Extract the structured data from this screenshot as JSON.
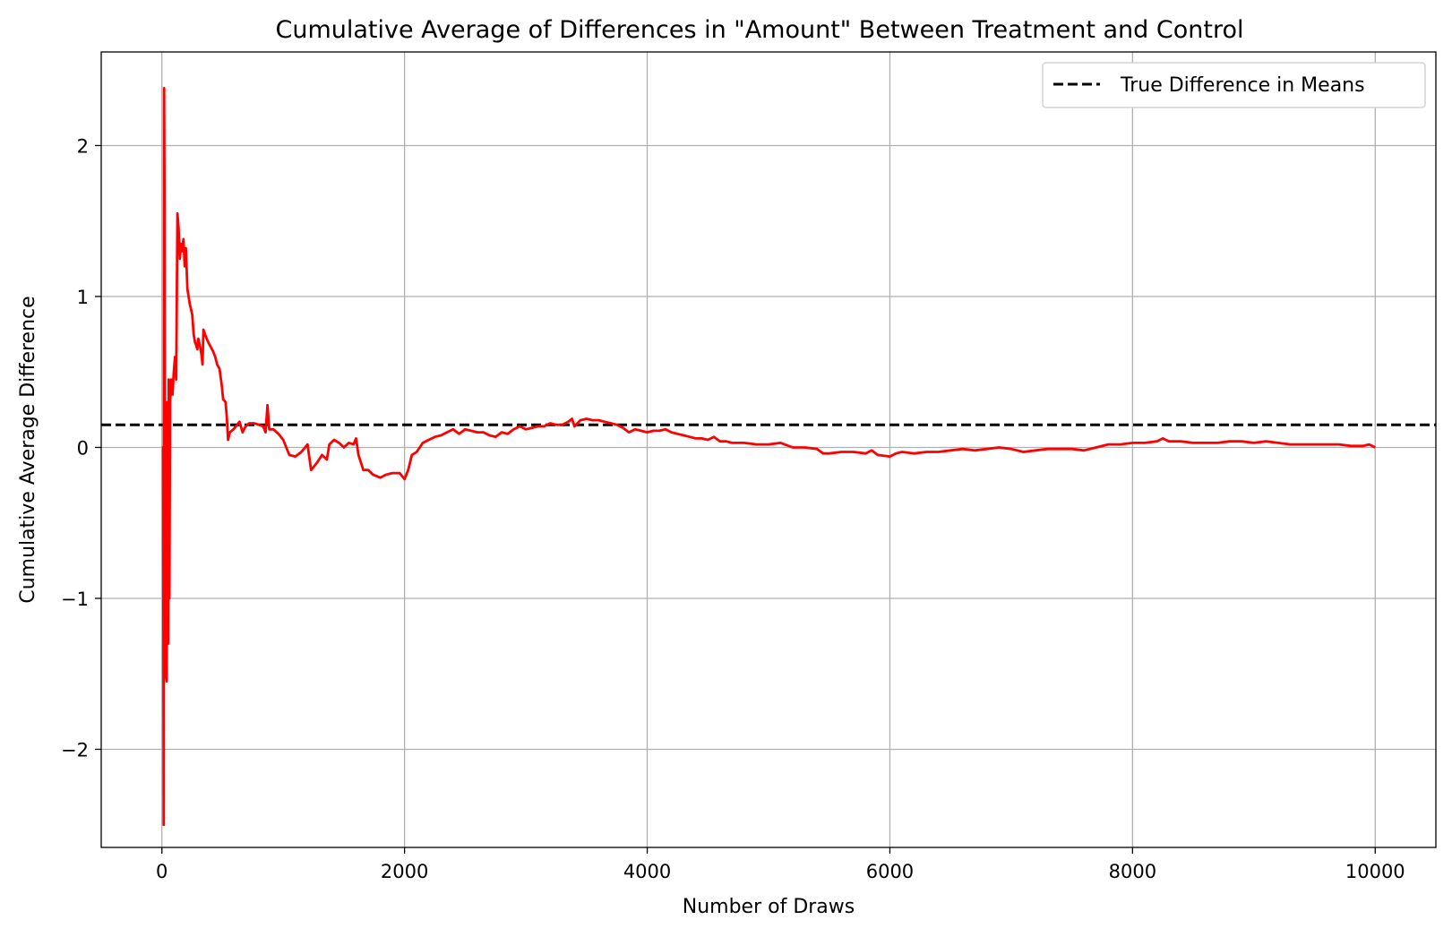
{
  "chart_data": {
    "type": "line",
    "title": "Cumulative Average of Differences in \"Amount\" Between Treatment and Control",
    "xlabel": "Number of Draws",
    "ylabel": "Cumulative Average Difference",
    "xlim": [
      -500,
      10500
    ],
    "ylim": [
      -2.65,
      2.62
    ],
    "xticks": [
      0,
      2000,
      4000,
      6000,
      8000,
      10000
    ],
    "xtick_labels": [
      "0",
      "2000",
      "4000",
      "6000",
      "8000",
      "10000"
    ],
    "yticks": [
      -2,
      -1,
      0,
      1,
      2
    ],
    "ytick_labels": [
      "−2",
      "−1",
      "0",
      "1",
      "2"
    ],
    "grid": true,
    "legend": {
      "placement": "top-right",
      "entries": [
        {
          "label": "True Difference in Means",
          "style": "dashed",
          "color": "#000000"
        }
      ]
    },
    "reference_line": {
      "name": "True Difference in Means",
      "y": 0.15,
      "style": "dashed",
      "color": "#000000"
    },
    "series": [
      {
        "color": "#ff0000",
        "points": [
          [
            0,
            0.0
          ],
          [
            10,
            0.0
          ],
          [
            15,
            -2.5
          ],
          [
            18,
            2.38
          ],
          [
            22,
            1.6
          ],
          [
            28,
            -1.2
          ],
          [
            33,
            -1.5
          ],
          [
            40,
            -1.55
          ],
          [
            45,
            0.3
          ],
          [
            52,
            -1.3
          ],
          [
            57,
            0.45
          ],
          [
            62,
            -1.0
          ],
          [
            68,
            0.3
          ],
          [
            78,
            0.45
          ],
          [
            88,
            0.35
          ],
          [
            98,
            0.5
          ],
          [
            108,
            0.6
          ],
          [
            118,
            0.45
          ],
          [
            128,
            1.55
          ],
          [
            138,
            1.45
          ],
          [
            148,
            1.25
          ],
          [
            158,
            1.35
          ],
          [
            168,
            1.3
          ],
          [
            178,
            1.38
          ],
          [
            188,
            1.2
          ],
          [
            198,
            1.32
          ],
          [
            210,
            1.05
          ],
          [
            230,
            0.95
          ],
          [
            250,
            0.88
          ],
          [
            262,
            0.75
          ],
          [
            272,
            0.7
          ],
          [
            282,
            0.68
          ],
          [
            292,
            0.65
          ],
          [
            300,
            0.72
          ],
          [
            312,
            0.68
          ],
          [
            325,
            0.62
          ],
          [
            335,
            0.55
          ],
          [
            342,
            0.78
          ],
          [
            360,
            0.74
          ],
          [
            380,
            0.7
          ],
          [
            400,
            0.67
          ],
          [
            420,
            0.64
          ],
          [
            440,
            0.6
          ],
          [
            455,
            0.55
          ],
          [
            475,
            0.52
          ],
          [
            495,
            0.4
          ],
          [
            505,
            0.32
          ],
          [
            525,
            0.3
          ],
          [
            535,
            0.2
          ],
          [
            545,
            0.05
          ],
          [
            560,
            0.1
          ],
          [
            590,
            0.12
          ],
          [
            620,
            0.15
          ],
          [
            640,
            0.17
          ],
          [
            665,
            0.1
          ],
          [
            690,
            0.14
          ],
          [
            720,
            0.16
          ],
          [
            760,
            0.16
          ],
          [
            800,
            0.15
          ],
          [
            835,
            0.14
          ],
          [
            855,
            0.1
          ],
          [
            870,
            0.28
          ],
          [
            885,
            0.12
          ],
          [
            920,
            0.12
          ],
          [
            960,
            0.09
          ],
          [
            1000,
            0.05
          ],
          [
            1050,
            -0.05
          ],
          [
            1100,
            -0.06
          ],
          [
            1150,
            -0.03
          ],
          [
            1200,
            0.02
          ],
          [
            1230,
            -0.15
          ],
          [
            1280,
            -0.1
          ],
          [
            1320,
            -0.05
          ],
          [
            1360,
            -0.08
          ],
          [
            1380,
            0.02
          ],
          [
            1420,
            0.05
          ],
          [
            1460,
            0.03
          ],
          [
            1500,
            0.0
          ],
          [
            1540,
            0.03
          ],
          [
            1580,
            0.02
          ],
          [
            1600,
            0.06
          ],
          [
            1620,
            -0.05
          ],
          [
            1640,
            -0.1
          ],
          [
            1660,
            -0.15
          ],
          [
            1700,
            -0.15
          ],
          [
            1740,
            -0.18
          ],
          [
            1800,
            -0.2
          ],
          [
            1850,
            -0.18
          ],
          [
            1900,
            -0.17
          ],
          [
            1960,
            -0.17
          ],
          [
            2000,
            -0.21
          ],
          [
            2030,
            -0.15
          ],
          [
            2060,
            -0.05
          ],
          [
            2100,
            -0.03
          ],
          [
            2150,
            0.03
          ],
          [
            2200,
            0.05
          ],
          [
            2250,
            0.07
          ],
          [
            2300,
            0.08
          ],
          [
            2350,
            0.1
          ],
          [
            2400,
            0.12
          ],
          [
            2450,
            0.09
          ],
          [
            2500,
            0.12
          ],
          [
            2550,
            0.11
          ],
          [
            2600,
            0.1
          ],
          [
            2650,
            0.1
          ],
          [
            2700,
            0.08
          ],
          [
            2750,
            0.07
          ],
          [
            2800,
            0.1
          ],
          [
            2850,
            0.09
          ],
          [
            2900,
            0.12
          ],
          [
            2950,
            0.14
          ],
          [
            3000,
            0.12
          ],
          [
            3050,
            0.13
          ],
          [
            3100,
            0.14
          ],
          [
            3150,
            0.14
          ],
          [
            3200,
            0.16
          ],
          [
            3250,
            0.15
          ],
          [
            3300,
            0.15
          ],
          [
            3350,
            0.17
          ],
          [
            3380,
            0.19
          ],
          [
            3400,
            0.14
          ],
          [
            3450,
            0.18
          ],
          [
            3500,
            0.19
          ],
          [
            3550,
            0.18
          ],
          [
            3600,
            0.18
          ],
          [
            3650,
            0.17
          ],
          [
            3700,
            0.16
          ],
          [
            3750,
            0.15
          ],
          [
            3800,
            0.13
          ],
          [
            3850,
            0.1
          ],
          [
            3900,
            0.12
          ],
          [
            3950,
            0.11
          ],
          [
            4000,
            0.1
          ],
          [
            4050,
            0.11
          ],
          [
            4100,
            0.11
          ],
          [
            4150,
            0.12
          ],
          [
            4200,
            0.1
          ],
          [
            4250,
            0.09
          ],
          [
            4300,
            0.08
          ],
          [
            4350,
            0.07
          ],
          [
            4400,
            0.06
          ],
          [
            4450,
            0.06
          ],
          [
            4500,
            0.05
          ],
          [
            4550,
            0.07
          ],
          [
            4600,
            0.04
          ],
          [
            4650,
            0.04
          ],
          [
            4700,
            0.03
          ],
          [
            4800,
            0.03
          ],
          [
            4900,
            0.02
          ],
          [
            5000,
            0.02
          ],
          [
            5100,
            0.03
          ],
          [
            5200,
            0.0
          ],
          [
            5300,
            0.0
          ],
          [
            5400,
            -0.01
          ],
          [
            5450,
            -0.04
          ],
          [
            5500,
            -0.04
          ],
          [
            5600,
            -0.03
          ],
          [
            5700,
            -0.03
          ],
          [
            5800,
            -0.04
          ],
          [
            5850,
            -0.02
          ],
          [
            5900,
            -0.05
          ],
          [
            6000,
            -0.06
          ],
          [
            6050,
            -0.04
          ],
          [
            6100,
            -0.03
          ],
          [
            6200,
            -0.04
          ],
          [
            6300,
            -0.03
          ],
          [
            6400,
            -0.03
          ],
          [
            6500,
            -0.02
          ],
          [
            6600,
            -0.01
          ],
          [
            6700,
            -0.02
          ],
          [
            6800,
            -0.01
          ],
          [
            6900,
            0.0
          ],
          [
            7000,
            -0.01
          ],
          [
            7100,
            -0.03
          ],
          [
            7200,
            -0.02
          ],
          [
            7300,
            -0.01
          ],
          [
            7400,
            -0.01
          ],
          [
            7500,
            -0.01
          ],
          [
            7600,
            -0.02
          ],
          [
            7700,
            0.0
          ],
          [
            7800,
            0.02
          ],
          [
            7900,
            0.02
          ],
          [
            8000,
            0.03
          ],
          [
            8100,
            0.03
          ],
          [
            8200,
            0.04
          ],
          [
            8250,
            0.06
          ],
          [
            8300,
            0.04
          ],
          [
            8400,
            0.04
          ],
          [
            8500,
            0.03
          ],
          [
            8600,
            0.03
          ],
          [
            8700,
            0.03
          ],
          [
            8800,
            0.04
          ],
          [
            8900,
            0.04
          ],
          [
            9000,
            0.03
          ],
          [
            9100,
            0.04
          ],
          [
            9200,
            0.03
          ],
          [
            9300,
            0.02
          ],
          [
            9400,
            0.02
          ],
          [
            9500,
            0.02
          ],
          [
            9600,
            0.02
          ],
          [
            9700,
            0.02
          ],
          [
            9800,
            0.01
          ],
          [
            9900,
            0.01
          ],
          [
            9950,
            0.02
          ],
          [
            10000,
            0.0
          ]
        ]
      }
    ]
  }
}
